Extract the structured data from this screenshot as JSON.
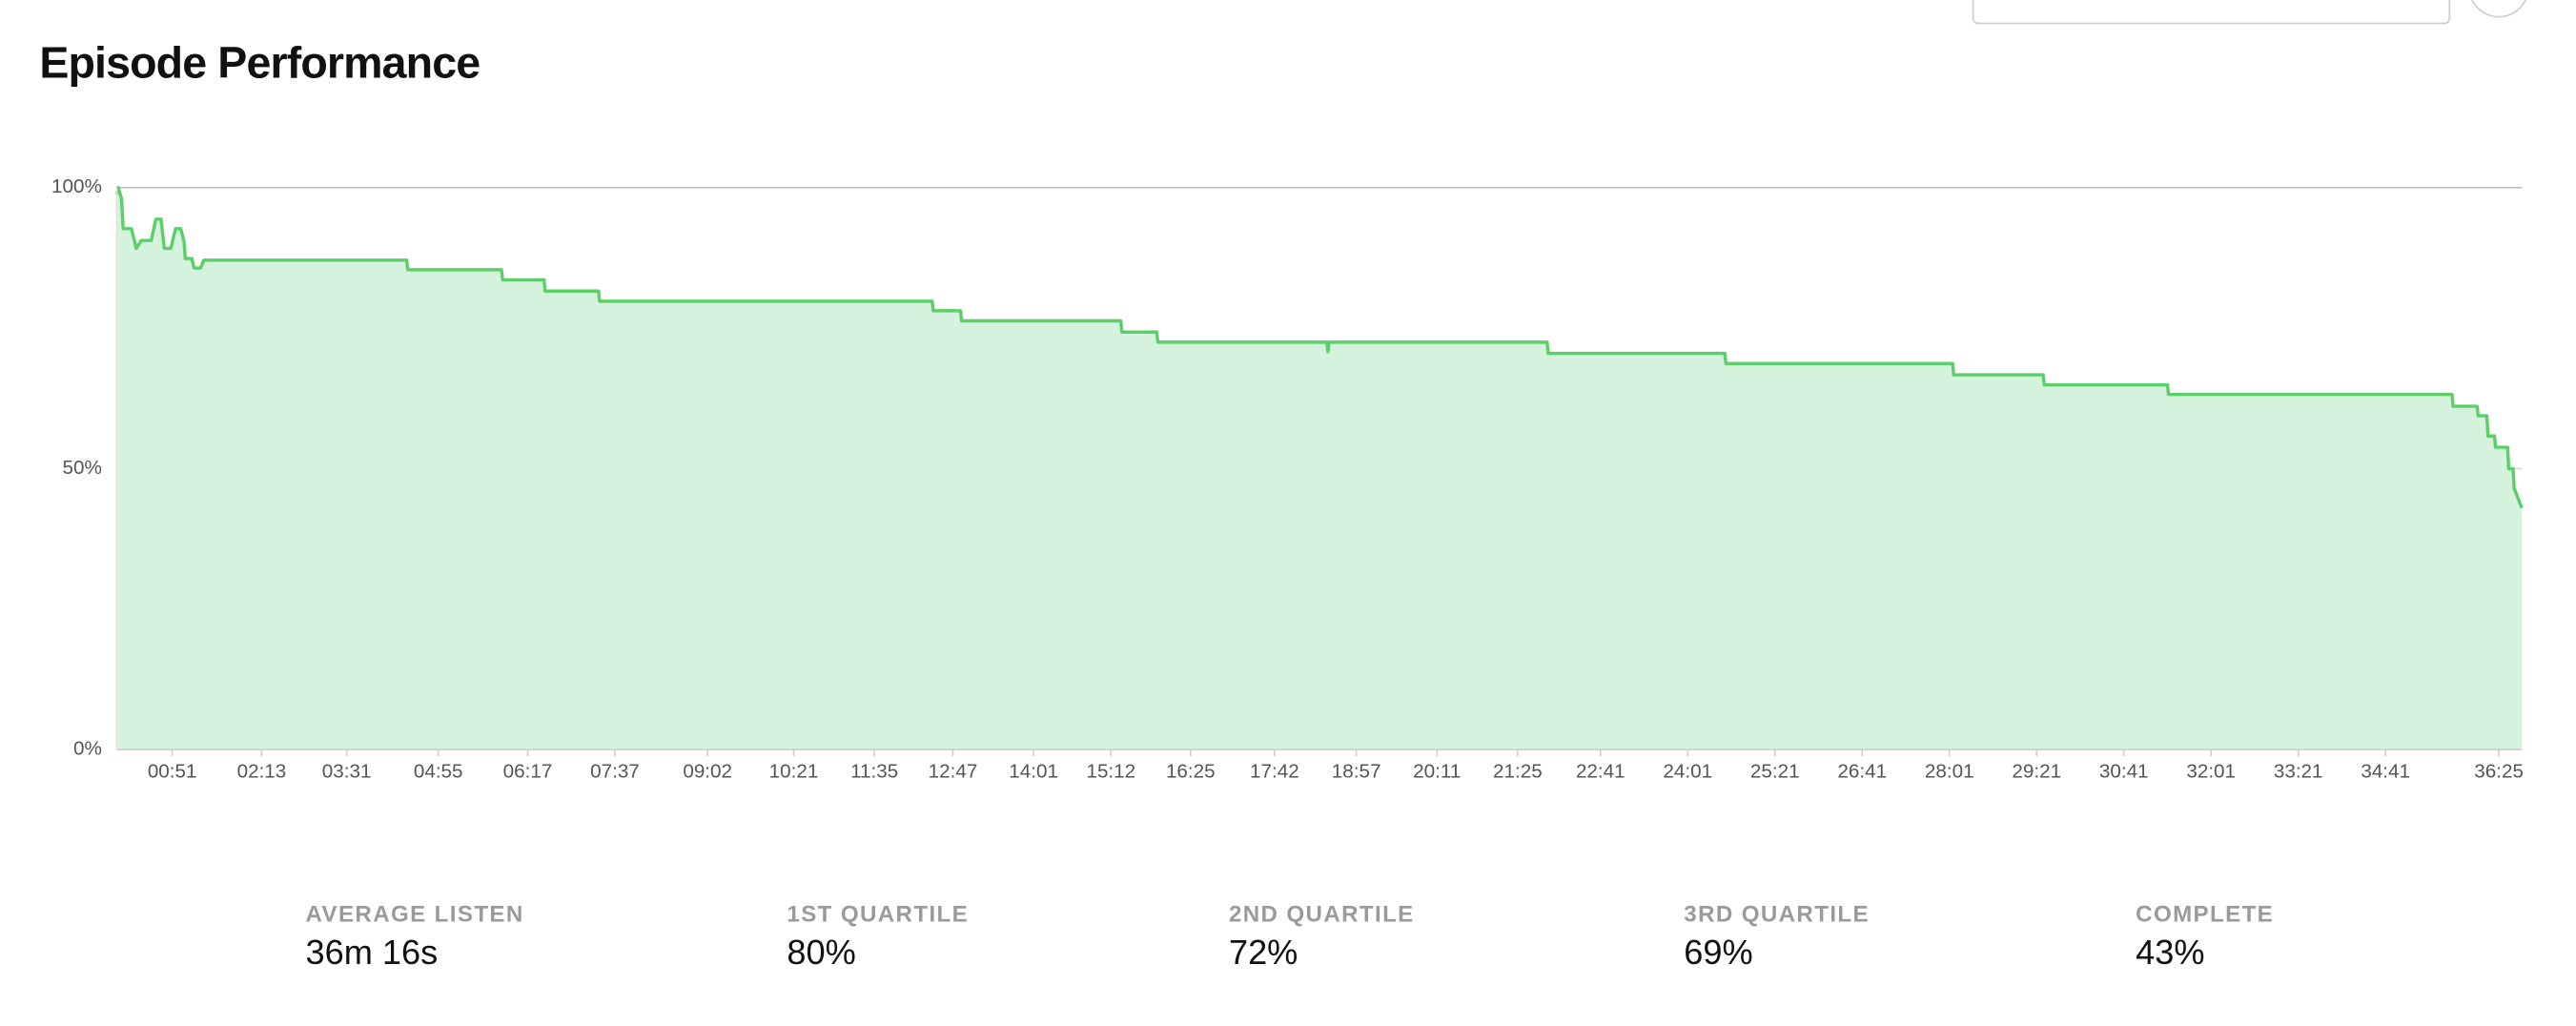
{
  "header": {
    "title": "Episode Performance"
  },
  "chart_data": {
    "type": "area",
    "x": [
      0,
      1.5,
      4.5,
      6,
      13.6,
      18,
      22.6,
      31.7,
      36,
      40.7,
      43.7,
      49.7,
      54,
      58.8,
      61.8,
      63,
      69,
      71,
      77,
      80,
      266,
      267,
      353,
      354,
      392,
      393,
      442,
      443,
      748,
      749,
      774,
      775,
      921,
      922,
      954,
      955,
      1110,
      1111,
      1112,
      1312,
      1313,
      1475,
      1476,
      1684,
      1685,
      1767,
      1768,
      1881,
      1882,
      2142,
      2143,
      2165,
      2166,
      2174,
      2175,
      2181,
      2182,
      2193,
      2194,
      2198,
      2199,
      2206
    ],
    "values": [
      98.8,
      100,
      98,
      92.7,
      92.7,
      89.2,
      90.6,
      90.6,
      94.4,
      94.4,
      89.2,
      89.2,
      92.7,
      92.7,
      90.4,
      87.4,
      87.4,
      85.7,
      85.7,
      87.1,
      87.1,
      85.4,
      85.4,
      83.6,
      83.6,
      81.6,
      81.6,
      79.8,
      79.8,
      78.1,
      78.1,
      76.3,
      76.3,
      74.3,
      74.3,
      72.5,
      72.5,
      70.8,
      72.5,
      72.5,
      70.5,
      70.5,
      68.7,
      68.7,
      66.7,
      66.7,
      64.9,
      64.9,
      63.2,
      63.2,
      61.1,
      61.1,
      59.4,
      59.4,
      55.8,
      55.8,
      53.8,
      53.8,
      50,
      50,
      46.5,
      43
    ],
    "color": "#5ccf6b",
    "fill_color": "#d5f3dc",
    "xlim": [
      0,
      2206
    ],
    "xticks": [
      {
        "value": 51,
        "label": "00:51"
      },
      {
        "value": 133,
        "label": "02:13"
      },
      {
        "value": 211,
        "label": "03:31"
      },
      {
        "value": 295,
        "label": "04:55"
      },
      {
        "value": 377,
        "label": "06:17"
      },
      {
        "value": 457,
        "label": "07:37"
      },
      {
        "value": 542,
        "label": "09:02"
      },
      {
        "value": 621,
        "label": "10:21"
      },
      {
        "value": 695,
        "label": "11:35"
      },
      {
        "value": 767,
        "label": "12:47"
      },
      {
        "value": 841,
        "label": "14:01"
      },
      {
        "value": 912,
        "label": "15:12"
      },
      {
        "value": 985,
        "label": "16:25"
      },
      {
        "value": 1062,
        "label": "17:42"
      },
      {
        "value": 1137,
        "label": "18:57"
      },
      {
        "value": 1211,
        "label": "20:11"
      },
      {
        "value": 1285,
        "label": "21:25"
      },
      {
        "value": 1361,
        "label": "22:41"
      },
      {
        "value": 1441,
        "label": "24:01"
      },
      {
        "value": 1521,
        "label": "25:21"
      },
      {
        "value": 1601,
        "label": "26:41"
      },
      {
        "value": 1681,
        "label": "28:01"
      },
      {
        "value": 1761,
        "label": "29:21"
      },
      {
        "value": 1841,
        "label": "30:41"
      },
      {
        "value": 1921,
        "label": "32:01"
      },
      {
        "value": 2001,
        "label": "33:21"
      },
      {
        "value": 2081,
        "label": "34:41"
      },
      {
        "value": 2185,
        "label": "36:25"
      }
    ],
    "ylim": [
      0,
      100
    ],
    "yticks": [
      {
        "value": 0,
        "label": "0%"
      },
      {
        "value": 50,
        "label": "50%"
      },
      {
        "value": 100,
        "label": "100%"
      }
    ],
    "grid": true
  },
  "stats": [
    {
      "label": "AVERAGE LISTEN",
      "value": "36m 16s"
    },
    {
      "label": "1ST QUARTILE",
      "value": "80%"
    },
    {
      "label": "2ND QUARTILE",
      "value": "72%"
    },
    {
      "label": "3RD QUARTILE",
      "value": "69%"
    },
    {
      "label": "COMPLETE",
      "value": "43%"
    }
  ]
}
